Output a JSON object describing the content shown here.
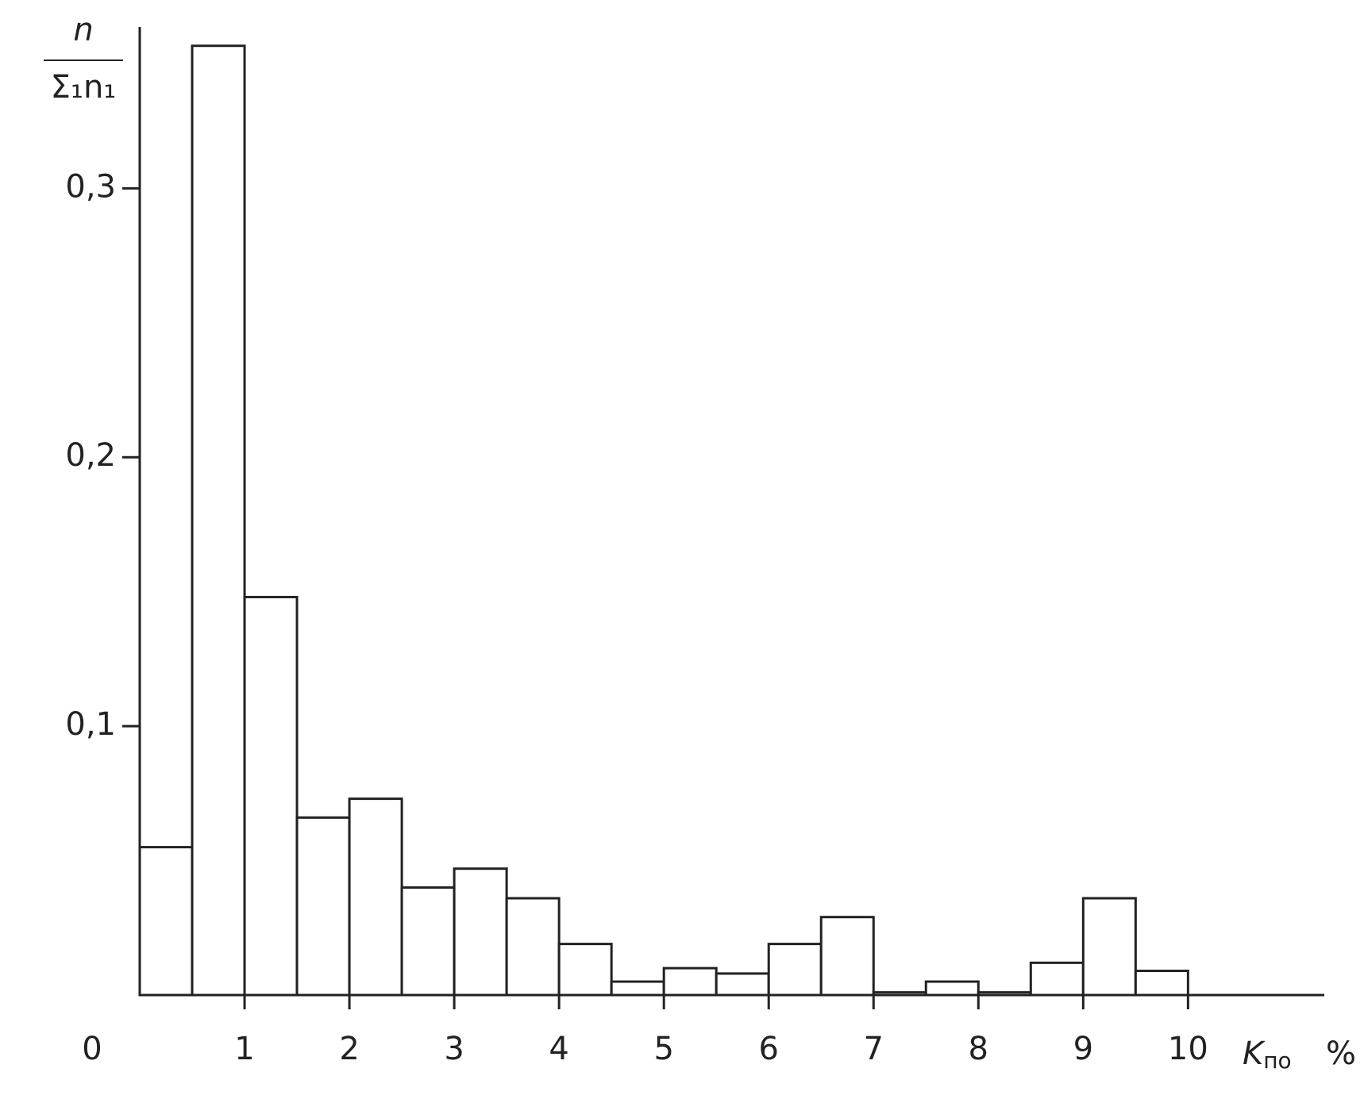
{
  "chart_data": {
    "type": "histogram",
    "y_label_numerator": "n",
    "y_label_denominator": "Σ₁n₁",
    "x_label": "K",
    "x_label_subscript": "по",
    "x_unit": "%",
    "bins": [
      0,
      0.5,
      1,
      1.5,
      2,
      2.5,
      3,
      3.5,
      4,
      4.5,
      5,
      5.5,
      6,
      6.5,
      7,
      7.5,
      8,
      8.5,
      9,
      9.5,
      10
    ],
    "values": [
      0.055,
      0.353,
      0.148,
      0.066,
      0.073,
      0.04,
      0.047,
      0.036,
      0.019,
      0.005,
      0.01,
      0.008,
      0.019,
      0.029,
      0.001,
      0.005,
      0.001,
      0.012,
      0.036,
      0.009
    ],
    "color": "#ffffff",
    "edge_color": "#222222",
    "xlim": [
      0,
      11.3
    ],
    "xticks": [
      0,
      1,
      2,
      3,
      4,
      5,
      6,
      7,
      8,
      9,
      10
    ],
    "ylim": [
      0,
      0.36
    ],
    "yticks": [
      {
        "value": 0.1,
        "label": "0,1"
      },
      {
        "value": 0.2,
        "label": "0,2"
      },
      {
        "value": 0.3,
        "label": "0,3"
      }
    ],
    "grid": false
  }
}
